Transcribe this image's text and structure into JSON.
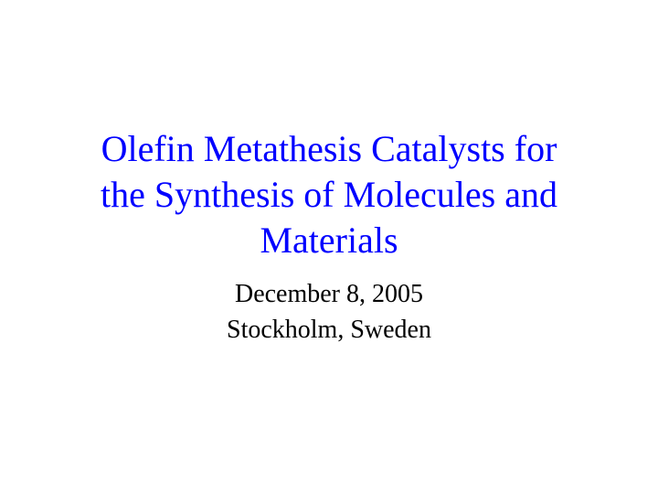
{
  "slide": {
    "title_line1": "Olefin Metathesis Catalysts for",
    "title_line2": "the Synthesis of Molecules and",
    "title_line3": "Materials",
    "date": "December 8, 2005",
    "location": "Stockholm, Sweden",
    "title_color": "#0000ff",
    "subtitle_color": "#000000",
    "background_color": "#ffffff",
    "title_fontsize": 40,
    "subtitle_fontsize": 28,
    "font_family": "Times New Roman"
  }
}
